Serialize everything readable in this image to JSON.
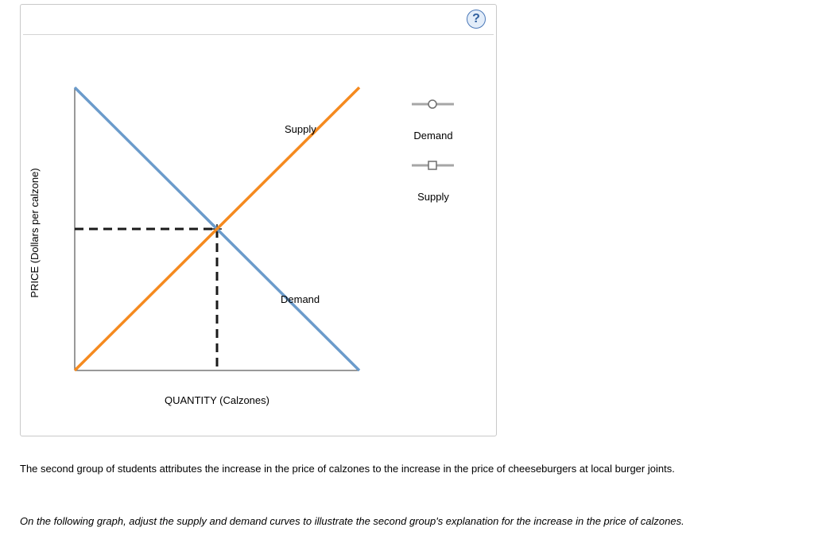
{
  "help": {
    "label": "?"
  },
  "colors": {
    "demand": "#6b9bcb",
    "supply": "#f58a1f",
    "guide": "#1a1a1a",
    "legend_line": "#a6a6a6"
  },
  "chart_data": {
    "type": "line",
    "title": "",
    "xlabel": "QUANTITY (Calzones)",
    "ylabel": "PRICE (Dollars per calzone)",
    "xlim": [
      0,
      10
    ],
    "ylim": [
      0,
      10
    ],
    "grid": false,
    "series": [
      {
        "name": "Demand",
        "x": [
          0,
          10
        ],
        "y": [
          10,
          0
        ],
        "label": "Demand",
        "color": "#6b9bcb"
      },
      {
        "name": "Supply",
        "x": [
          0,
          10
        ],
        "y": [
          0,
          10
        ],
        "label": "Supply",
        "color": "#f58a1f"
      }
    ],
    "equilibrium": {
      "x": 5,
      "y": 5
    }
  },
  "legend": {
    "items": [
      {
        "label": "Demand",
        "marker": "circle"
      },
      {
        "label": "Supply",
        "marker": "square"
      }
    ]
  },
  "text": {
    "paragraph_1": "The second group of students attributes the increase in the price of calzones to the increase in the price of cheeseburgers at local burger joints.",
    "paragraph_2": "On the following graph, adjust the supply and demand curves to illustrate the second group's explanation for the increase in the price of calzones."
  }
}
